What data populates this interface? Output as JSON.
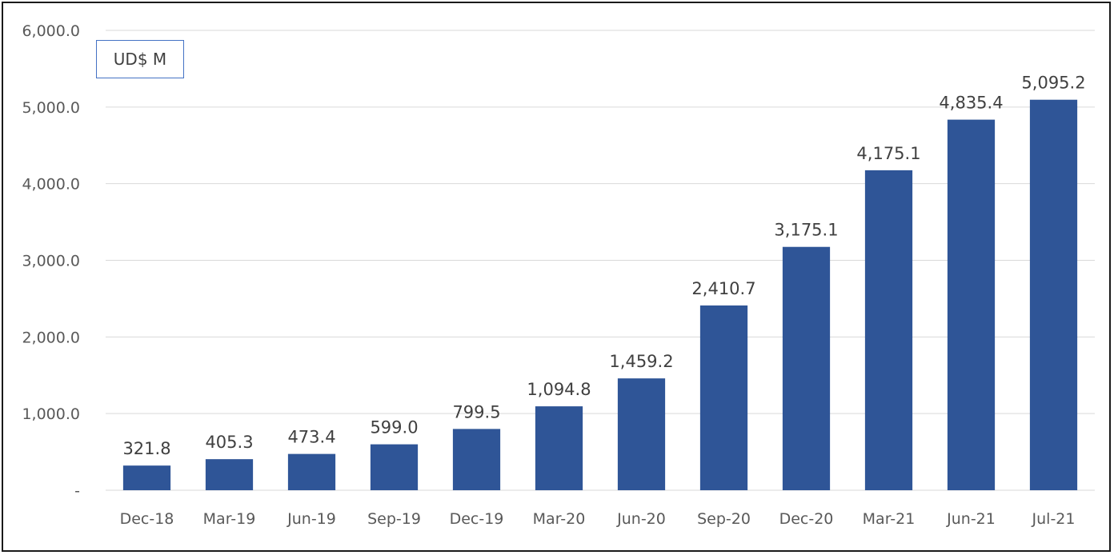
{
  "chart_data": {
    "type": "bar",
    "title": "",
    "xlabel": "",
    "ylabel": "",
    "unit_label": "UD$ M",
    "categories": [
      "Dec-18",
      "Mar-19",
      "Jun-19",
      "Sep-19",
      "Dec-19",
      "Mar-20",
      "Jun-20",
      "Sep-20",
      "Dec-20",
      "Mar-21",
      "Jun-21",
      "Jul-21"
    ],
    "values": [
      321.8,
      405.3,
      473.4,
      599.0,
      799.5,
      1094.8,
      1459.2,
      2410.7,
      3175.1,
      4175.1,
      4835.4,
      5095.2
    ],
    "data_labels": [
      "321.8",
      "405.3",
      "473.4",
      "599.0",
      "799.5",
      "1,094.8",
      "1,459.2",
      "2,410.7",
      "3,175.1",
      "4,175.1",
      "4,835.4",
      "5,095.2"
    ],
    "ylim": [
      0,
      6000
    ],
    "yticks": [
      0,
      1000,
      2000,
      3000,
      4000,
      5000,
      6000
    ],
    "ytick_labels": [
      "-",
      "1,000.0",
      "2,000.0",
      "3,000.0",
      "4,000.0",
      "5,000.0",
      "6,000.0"
    ],
    "grid": true,
    "legend": "none",
    "bar_color": "#2f5597",
    "unit_box_border_color": "#4472c4"
  }
}
